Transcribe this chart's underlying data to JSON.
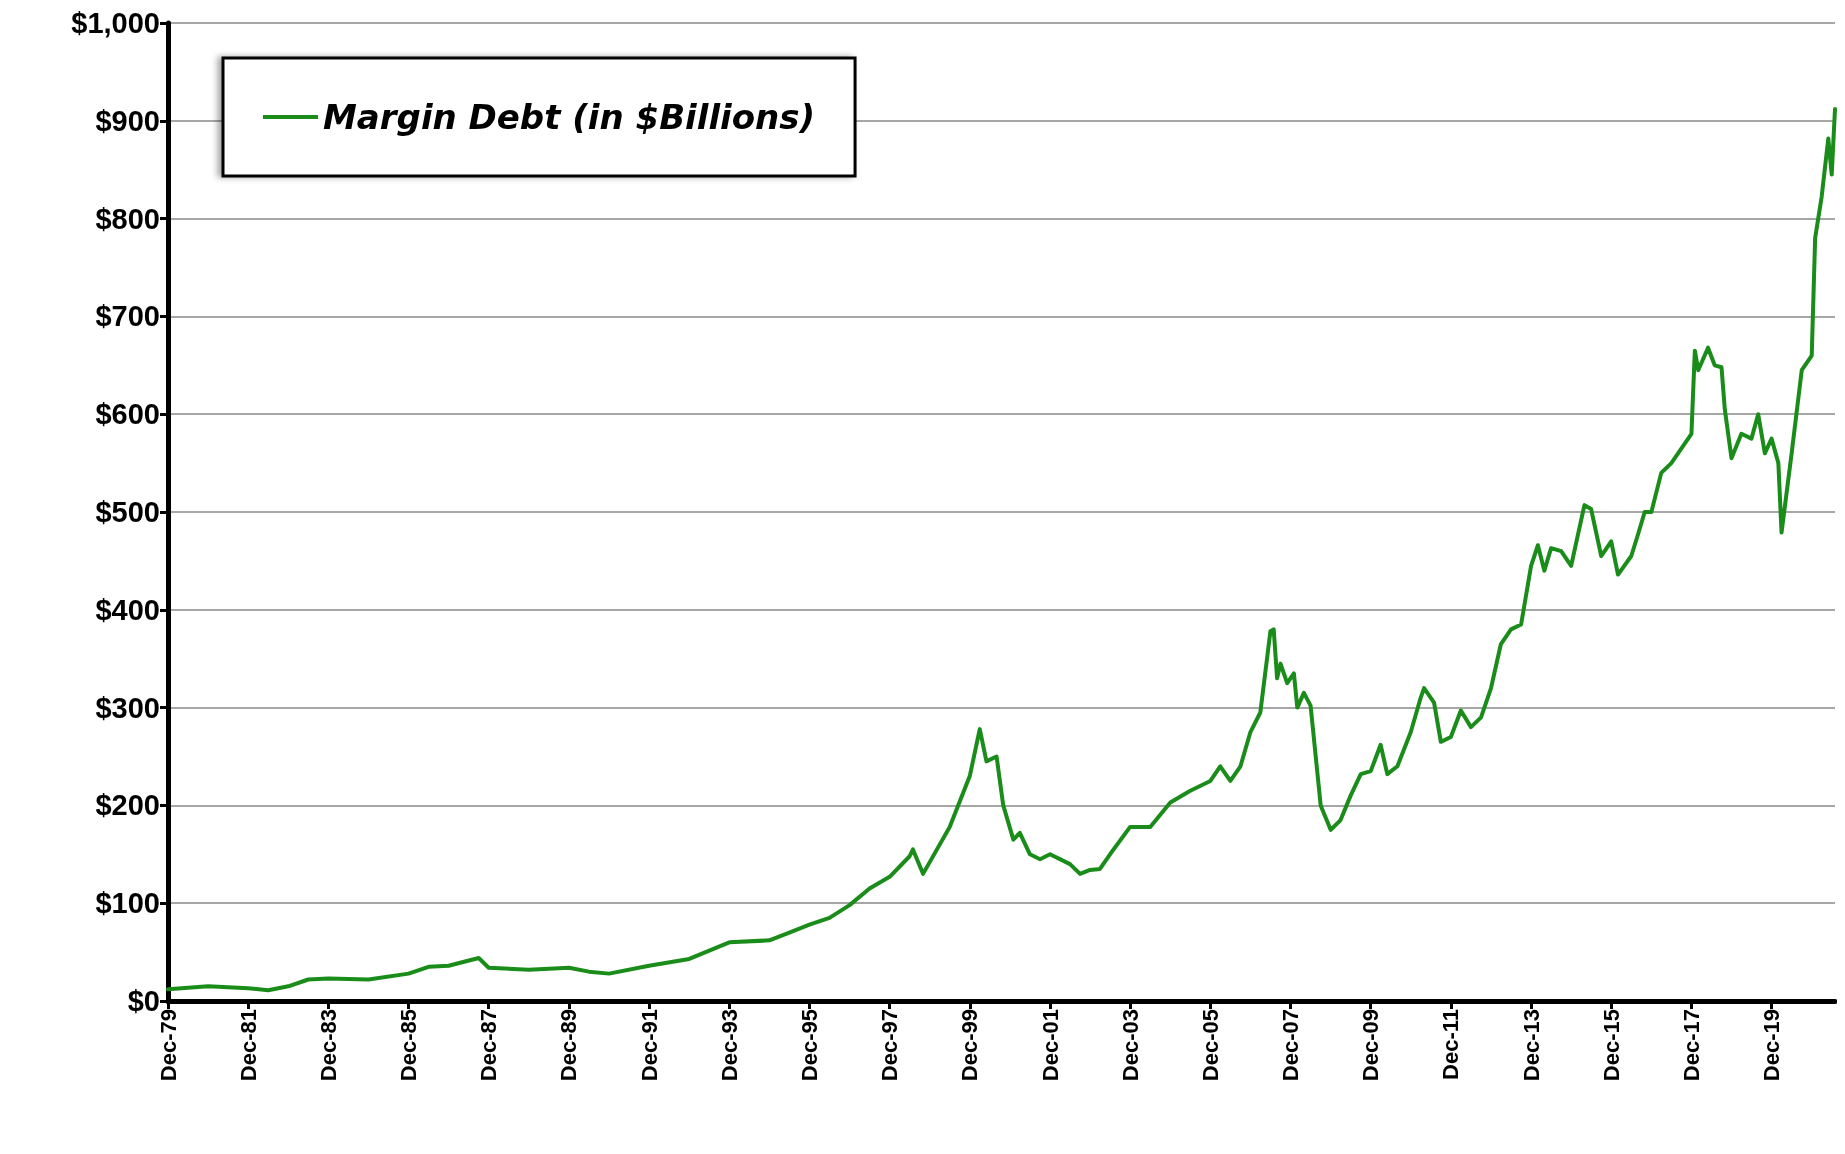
{
  "chart_data": {
    "type": "line",
    "legend": "top left",
    "grid": "y",
    "marker": "none",
    "line_style": "solid",
    "xlim": [
      "1979-12",
      "2021-07"
    ],
    "ylim": [
      0,
      1000
    ],
    "xticks": [
      {
        "value": "1979-12",
        "label": "Dec-79"
      },
      {
        "value": "1981-12",
        "label": "Dec-81"
      },
      {
        "value": "1983-12",
        "label": "Dec-83"
      },
      {
        "value": "1985-12",
        "label": "Dec-85"
      },
      {
        "value": "1987-12",
        "label": "Dec-87"
      },
      {
        "value": "1989-12",
        "label": "Dec-89"
      },
      {
        "value": "1991-12",
        "label": "Dec-91"
      },
      {
        "value": "1993-12",
        "label": "Dec-93"
      },
      {
        "value": "1995-12",
        "label": "Dec-95"
      },
      {
        "value": "1997-12",
        "label": "Dec-97"
      },
      {
        "value": "1999-12",
        "label": "Dec-99"
      },
      {
        "value": "2001-12",
        "label": "Dec-01"
      },
      {
        "value": "2003-12",
        "label": "Dec-03"
      },
      {
        "value": "2005-12",
        "label": "Dec-05"
      },
      {
        "value": "2007-12",
        "label": "Dec-07"
      },
      {
        "value": "2009-12",
        "label": "Dec-09"
      },
      {
        "value": "2011-12",
        "label": "Dec-11"
      },
      {
        "value": "2013-12",
        "label": "Dec-13"
      },
      {
        "value": "2015-12",
        "label": "Dec-15"
      },
      {
        "value": "2017-12",
        "label": "Dec-17"
      },
      {
        "value": "2019-12",
        "label": "Dec-19"
      }
    ],
    "yticks": [
      {
        "value": 0,
        "label": "$0"
      },
      {
        "value": 100,
        "label": "$100"
      },
      {
        "value": 200,
        "label": "$200"
      },
      {
        "value": 300,
        "label": "$300"
      },
      {
        "value": 400,
        "label": "$400"
      },
      {
        "value": 500,
        "label": "$500"
      },
      {
        "value": 600,
        "label": "$600"
      },
      {
        "value": 700,
        "label": "$700"
      },
      {
        "value": 800,
        "label": "$800"
      },
      {
        "value": 900,
        "label": "$900"
      },
      {
        "value": 1000,
        "label": "$1,000"
      }
    ],
    "series": [
      {
        "name": "Margin Debt (in $Billions)",
        "color": "#1a8c1a",
        "x": [
          "1979-12",
          "1980-12",
          "1981-12",
          "1982-06",
          "1982-12",
          "1983-06",
          "1983-12",
          "1984-12",
          "1985-12",
          "1986-06",
          "1986-12",
          "1987-09",
          "1987-12",
          "1988-12",
          "1989-12",
          "1990-06",
          "1990-12",
          "1991-12",
          "1992-12",
          "1993-12",
          "1994-12",
          "1995-06",
          "1995-12",
          "1996-06",
          "1996-12",
          "1997-06",
          "1997-12",
          "1998-06",
          "1998-07",
          "1998-10",
          "1998-12",
          "1999-06",
          "1999-12",
          "2000-03",
          "2000-05",
          "2000-08",
          "2000-10",
          "2001-01",
          "2001-03",
          "2001-06",
          "2001-09",
          "2001-12",
          "2002-06",
          "2002-09",
          "2002-12",
          "2003-03",
          "2003-06",
          "2003-12",
          "2004-06",
          "2004-12",
          "2005-06",
          "2005-12",
          "2006-03",
          "2006-06",
          "2006-09",
          "2006-12",
          "2007-03",
          "2007-05",
          "2007-06",
          "2007-07",
          "2007-08",
          "2007-09",
          "2007-11",
          "2008-01",
          "2008-02",
          "2008-04",
          "2008-06",
          "2008-09",
          "2008-12",
          "2009-03",
          "2009-06",
          "2009-09",
          "2009-12",
          "2010-03",
          "2010-05",
          "2010-08",
          "2010-12",
          "2011-03",
          "2011-04",
          "2011-07",
          "2011-09",
          "2011-12",
          "2012-03",
          "2012-06",
          "2012-09",
          "2012-12",
          "2013-03",
          "2013-06",
          "2013-09",
          "2013-12",
          "2014-02",
          "2014-04",
          "2014-06",
          "2014-09",
          "2014-12",
          "2015-04",
          "2015-06",
          "2015-09",
          "2015-12",
          "2016-02",
          "2016-06",
          "2016-08",
          "2016-10",
          "2016-12",
          "2017-03",
          "2017-06",
          "2017-09",
          "2017-12",
          "2018-01",
          "2018-02",
          "2018-05",
          "2018-07",
          "2018-09",
          "2018-10",
          "2018-12",
          "2019-03",
          "2019-06",
          "2019-08",
          "2019-10",
          "2019-12",
          "2020-02",
          "2020-03",
          "2020-06",
          "2020-09",
          "2020-12",
          "2021-01",
          "2021-03",
          "2021-05",
          "2021-06",
          "2021-07"
        ],
        "values": [
          12,
          15,
          13,
          11,
          15,
          22,
          23,
          22,
          28,
          35,
          36,
          44,
          34,
          32,
          34,
          30,
          28,
          36,
          43,
          60,
          62,
          70,
          78,
          85,
          98,
          115,
          127,
          148,
          155,
          130,
          142,
          178,
          230,
          278,
          245,
          250,
          200,
          165,
          172,
          150,
          145,
          150,
          140,
          130,
          134,
          135,
          150,
          178,
          178,
          203,
          215,
          225,
          240,
          225,
          240,
          275,
          295,
          350,
          378,
          380,
          330,
          345,
          325,
          335,
          300,
          315,
          302,
          200,
          175,
          185,
          210,
          232,
          235,
          262,
          232,
          240,
          275,
          310,
          320,
          305,
          265,
          270,
          297,
          280,
          290,
          320,
          365,
          380,
          385,
          445,
          466,
          440,
          463,
          460,
          445,
          507,
          503,
          455,
          470,
          436,
          455,
          477,
          500,
          500,
          540,
          550,
          565,
          580,
          665,
          645,
          668,
          650,
          648,
          605,
          555,
          580,
          575,
          600,
          560,
          575,
          550,
          479,
          560,
          645,
          660,
          780,
          822,
          882,
          845,
          912
        ]
      }
    ]
  }
}
